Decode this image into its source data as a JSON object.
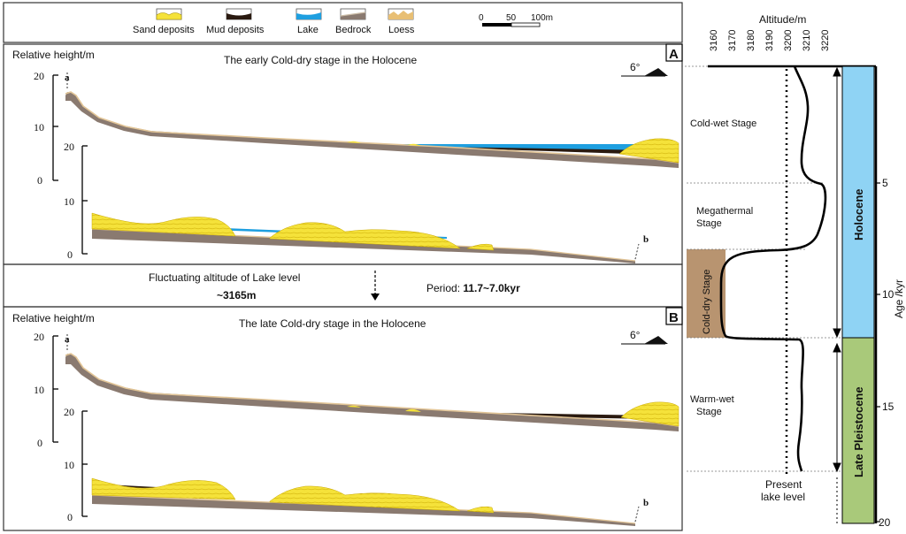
{
  "legend": {
    "items": [
      {
        "label": "Sand deposits",
        "color": "#f5e23a"
      },
      {
        "label": "Mud deposits",
        "color": "#2a1a10"
      },
      {
        "label": "Lake",
        "color": "#1e9fe0"
      },
      {
        "label": "Bedrock",
        "color": "#8a7a70"
      },
      {
        "label": "Loess",
        "color": "#e8bf74"
      }
    ],
    "scalebar": {
      "ticks": [
        "0",
        "50",
        "100m"
      ]
    }
  },
  "panelA": {
    "letter": "A",
    "title": "The early Cold-dry stage in the Holocene",
    "ylabel": "Relative height/m",
    "upper_ticks": [
      "20",
      "10",
      "0"
    ],
    "lower_ticks": [
      "20",
      "10",
      "0"
    ],
    "point_start": "a",
    "point_end": "b",
    "slope": "6°"
  },
  "middle": {
    "lake_label": "Fluctuating altitude of Lake level",
    "altitude": "~3165m",
    "period_prefix": "Period: ",
    "period_value": "11.7~7.0kyr"
  },
  "panelB": {
    "letter": "B",
    "title": "The late Cold-dry stage in the Holocene",
    "ylabel": "Relative height/m",
    "upper_ticks": [
      "20",
      "10",
      "0"
    ],
    "lower_ticks": [
      "20",
      "10",
      "0"
    ],
    "point_start": "a",
    "point_end": "b",
    "slope": "6°"
  },
  "curve": {
    "x_title": "Altitude/m",
    "x_ticks": [
      "3160",
      "3170",
      "3180",
      "3190",
      "3200",
      "3210",
      "3220"
    ],
    "y_title": "Age /kyr",
    "y_ticks": [
      "5",
      "10",
      "15",
      "20"
    ],
    "stages": [
      "Cold-wet Stage",
      "Megathermal",
      "Stage",
      "Cold-dry Stage",
      "Warm-wet",
      "Stage"
    ],
    "present_level": [
      "Present",
      "lake level"
    ],
    "epochs": [
      {
        "label": "Holocene",
        "color": "#8fd3f4"
      },
      {
        "label": "Late Pleistocene",
        "color": "#a9c97a"
      }
    ],
    "cold_dry_color": "#b89470"
  }
}
